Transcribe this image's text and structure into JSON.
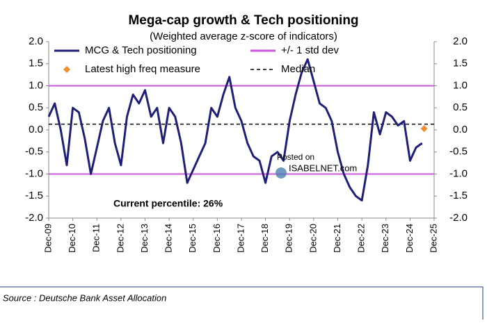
{
  "chart_data": {
    "type": "line",
    "title": "Mega-cap growth & Tech positioning",
    "subtitle": "(Weighted average z-score of indicators)",
    "source": "Source : Deutsche Bank Asset Allocation",
    "annotation": "Current percentile: 26%",
    "watermark": [
      "Posted on",
      "ISABELNET.com"
    ],
    "xlim": [
      "2009-12",
      "2025-12"
    ],
    "xticks": [
      {
        "value": "2009-12",
        "label": "Dec-09"
      },
      {
        "value": "2010-12",
        "label": "Dec-10"
      },
      {
        "value": "2011-12",
        "label": "Dec-11"
      },
      {
        "value": "2012-12",
        "label": "Dec-12"
      },
      {
        "value": "2013-12",
        "label": "Dec-13"
      },
      {
        "value": "2014-12",
        "label": "Dec-14"
      },
      {
        "value": "2015-12",
        "label": "Dec-15"
      },
      {
        "value": "2016-12",
        "label": "Dec-16"
      },
      {
        "value": "2017-12",
        "label": "Dec-17"
      },
      {
        "value": "2018-12",
        "label": "Dec-18"
      },
      {
        "value": "2019-12",
        "label": "Dec-19"
      },
      {
        "value": "2020-12",
        "label": "Dec-20"
      },
      {
        "value": "2021-12",
        "label": "Dec-21"
      },
      {
        "value": "2022-12",
        "label": "Dec-22"
      },
      {
        "value": "2023-12",
        "label": "Dec-23"
      },
      {
        "value": "2024-12",
        "label": "Dec-24"
      },
      {
        "value": "2025-12",
        "label": "Dec-25"
      }
    ],
    "ylim": [
      -2,
      2
    ],
    "yticks": [
      {
        "value": 2,
        "label": "2.0"
      },
      {
        "value": 1.5,
        "label": "1.5"
      },
      {
        "value": 1,
        "label": "1.0"
      },
      {
        "value": 0.5,
        "label": "0.5"
      },
      {
        "value": 0,
        "label": "0.0"
      },
      {
        "value": -0.5,
        "label": "-0.5"
      },
      {
        "value": -1,
        "label": "-1.0"
      },
      {
        "value": -1.5,
        "label": "-1.5"
      },
      {
        "value": -2,
        "label": "-2.0"
      }
    ],
    "y2lim": [
      -2,
      2
    ],
    "y2ticks": [
      {
        "value": 2,
        "label": "2.0"
      },
      {
        "value": 1.5,
        "label": "1.5"
      },
      {
        "value": 1,
        "label": "1.0"
      },
      {
        "value": 0.5,
        "label": "0.5"
      },
      {
        "value": 0,
        "label": "0.0"
      },
      {
        "value": -0.5,
        "label": "-0.5"
      },
      {
        "value": -1,
        "label": "-1.0"
      },
      {
        "value": -1.5,
        "label": "-1.5"
      },
      {
        "value": -2,
        "label": "-2.0"
      }
    ],
    "series": [
      {
        "name": "MCG & Tech positioning",
        "color": "#1f1f7a",
        "x": [
          "2009-12",
          "2010-03",
          "2010-06",
          "2010-09",
          "2010-12",
          "2011-03",
          "2011-06",
          "2011-09",
          "2011-12",
          "2012-03",
          "2012-06",
          "2012-09",
          "2012-12",
          "2013-03",
          "2013-06",
          "2013-09",
          "2013-12",
          "2014-03",
          "2014-06",
          "2014-09",
          "2014-12",
          "2015-03",
          "2015-06",
          "2015-09",
          "2015-12",
          "2016-03",
          "2016-06",
          "2016-09",
          "2016-12",
          "2017-03",
          "2017-06",
          "2017-09",
          "2017-12",
          "2018-03",
          "2018-06",
          "2018-09",
          "2018-12",
          "2019-03",
          "2019-06",
          "2019-09",
          "2019-12",
          "2020-03",
          "2020-06",
          "2020-09",
          "2020-12",
          "2021-03",
          "2021-06",
          "2021-09",
          "2021-12",
          "2022-03",
          "2022-06",
          "2022-09",
          "2022-12",
          "2023-03",
          "2023-06",
          "2023-09",
          "2023-12",
          "2024-03",
          "2024-06",
          "2024-09",
          "2024-12",
          "2025-03",
          "2025-06"
        ],
        "values": [
          0.3,
          0.6,
          0.0,
          -0.8,
          0.5,
          0.4,
          -0.2,
          -1.0,
          -0.4,
          0.2,
          0.5,
          -0.3,
          -0.8,
          0.3,
          0.8,
          0.6,
          0.9,
          0.3,
          0.5,
          -0.3,
          0.5,
          0.3,
          -0.3,
          -1.2,
          -0.9,
          -0.6,
          -0.3,
          0.5,
          0.3,
          0.8,
          1.2,
          0.5,
          0.2,
          -0.3,
          -0.6,
          -0.7,
          -1.2,
          -0.6,
          -0.5,
          -0.7,
          0.2,
          0.8,
          1.3,
          1.6,
          1.1,
          0.6,
          0.5,
          0.2,
          -0.5,
          -1.0,
          -1.3,
          -1.5,
          -1.6,
          -0.8,
          0.4,
          -0.1,
          0.4,
          0.3,
          0.1,
          0.2,
          -0.7,
          -0.4,
          -0.3
        ]
      }
    ],
    "points": [
      {
        "name": "Latest high freq measure",
        "color": "#f28e2b",
        "x": "2025-07",
        "value": 0.03
      }
    ],
    "reference_lines": [
      {
        "name": "+/- 1 std dev",
        "color": "#cc55dd",
        "values": [
          1,
          -1
        ]
      },
      {
        "name": "Median",
        "color": "#000000",
        "values": [
          0.13
        ],
        "dash": true
      }
    ]
  }
}
